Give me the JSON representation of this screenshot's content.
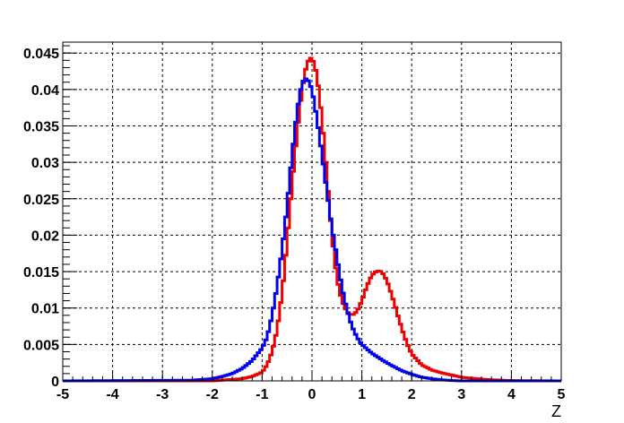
{
  "chart_data": {
    "type": "line",
    "title": "",
    "xlabel": "Z",
    "ylabel": "",
    "xlim": [
      -5,
      5
    ],
    "ylim": [
      0,
      0.0465
    ],
    "grid": true,
    "x_ticks": [
      "-5",
      "-4",
      "-3",
      "-2",
      "-1",
      "0",
      "1",
      "2",
      "3",
      "4",
      "5"
    ],
    "y_ticks": [
      "0",
      "0.005",
      "0.01",
      "0.015",
      "0.02",
      "0.025",
      "0.03",
      "0.035",
      "0.04",
      "0.045"
    ],
    "x_tick_values": [
      -5,
      -4,
      -3,
      -2,
      -1,
      0,
      1,
      2,
      3,
      4,
      5
    ],
    "y_tick_values": [
      0,
      0.005,
      0.01,
      0.015,
      0.02,
      0.025,
      0.03,
      0.035,
      0.04,
      0.045
    ],
    "series": [
      {
        "color": "#ee0000",
        "x": [
          -5,
          -2.0,
          -1.8,
          -1.6,
          -1.4,
          -1.2,
          -1.0,
          -0.9,
          -0.8,
          -0.7,
          -0.6,
          -0.5,
          -0.4,
          -0.3,
          -0.2,
          -0.1,
          0.0,
          0.1,
          0.2,
          0.3,
          0.4,
          0.5,
          0.6,
          0.7,
          0.8,
          0.9,
          1.0,
          1.1,
          1.2,
          1.3,
          1.4,
          1.5,
          1.6,
          1.7,
          1.8,
          1.9,
          2.0,
          2.2,
          2.4,
          2.6,
          2.8,
          3.0,
          3.3,
          3.6,
          4.0,
          5
        ],
        "y": [
          0,
          0,
          0.0001,
          0.0002,
          0.0003,
          0.0006,
          0.0012,
          0.0022,
          0.004,
          0.007,
          0.012,
          0.019,
          0.027,
          0.034,
          0.04,
          0.0437,
          0.0445,
          0.042,
          0.036,
          0.028,
          0.02,
          0.014,
          0.011,
          0.0095,
          0.009,
          0.0095,
          0.011,
          0.013,
          0.0145,
          0.0151,
          0.015,
          0.0138,
          0.0118,
          0.0095,
          0.0072,
          0.0052,
          0.0037,
          0.0022,
          0.0015,
          0.0011,
          0.0008,
          0.0005,
          0.0003,
          0.00015,
          5e-05,
          0
        ]
      },
      {
        "color": "#0000ee",
        "x": [
          -5,
          -2.4,
          -2.0,
          -1.8,
          -1.6,
          -1.4,
          -1.2,
          -1.0,
          -0.9,
          -0.8,
          -0.7,
          -0.6,
          -0.5,
          -0.4,
          -0.3,
          -0.2,
          -0.1,
          0.0,
          0.1,
          0.2,
          0.3,
          0.4,
          0.5,
          0.6,
          0.7,
          0.8,
          0.9,
          1.0,
          1.1,
          1.2,
          1.4,
          1.6,
          1.8,
          2.0,
          2.2,
          2.4,
          2.6,
          2.8,
          3.0,
          5
        ],
        "y": [
          0,
          0.0001,
          0.0003,
          0.0006,
          0.001,
          0.0017,
          0.0028,
          0.0045,
          0.006,
          0.009,
          0.013,
          0.018,
          0.024,
          0.031,
          0.037,
          0.041,
          0.0416,
          0.04,
          0.036,
          0.031,
          0.026,
          0.021,
          0.017,
          0.0128,
          0.0098,
          0.0075,
          0.006,
          0.005,
          0.0044,
          0.0038,
          0.0029,
          0.0021,
          0.0014,
          0.0009,
          0.0005,
          0.0003,
          0.00015,
          5e-05,
          0,
          0
        ]
      }
    ]
  }
}
